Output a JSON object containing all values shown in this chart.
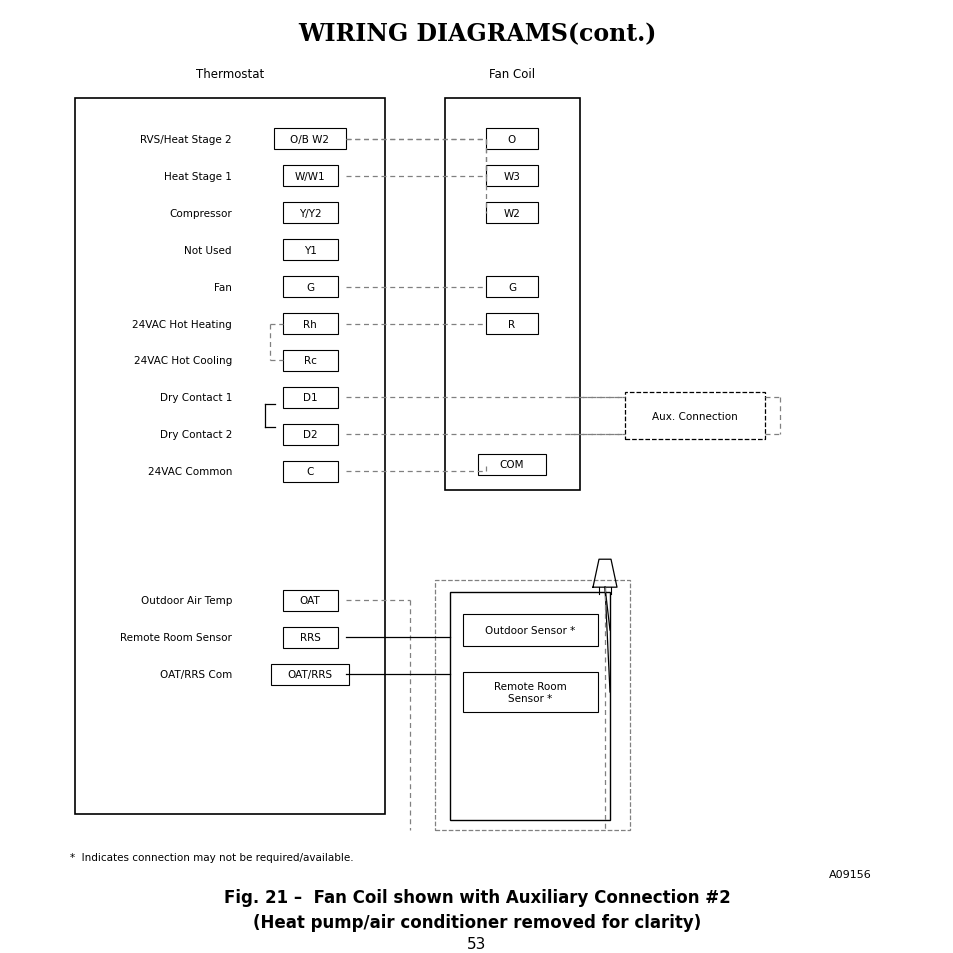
{
  "title": "WIRING DIAGRAMS(cont.)",
  "fig_caption_line1": "Fig. 21 –  Fan Coil shown with Auxiliary Connection #2",
  "fig_caption_line2": "(Heat pump/air conditioner removed for clarity)",
  "footnote": "*  Indicates connection may not be required/available.",
  "model_number": "A09156",
  "page_number": "53",
  "thermostat_label": "Thermostat",
  "fancoil_label": "Fan Coil",
  "thermo_rows": [
    {
      "label": "RVS/Heat Stage 2",
      "terminal": "O/B W2"
    },
    {
      "label": "Heat Stage 1",
      "terminal": "W/W1"
    },
    {
      "label": "Compressor",
      "terminal": "Y/Y2"
    },
    {
      "label": "Not Used",
      "terminal": "Y1"
    },
    {
      "label": "Fan",
      "terminal": "G"
    },
    {
      "label": "24VAC Hot Heating",
      "terminal": "Rh"
    },
    {
      "label": "24VAC Hot Cooling",
      "terminal": "Rc"
    },
    {
      "label": "Dry Contact 1",
      "terminal": "D1"
    },
    {
      "label": "Dry Contact 2",
      "terminal": "D2"
    },
    {
      "label": "24VAC Common",
      "terminal": "C"
    }
  ],
  "thermo_sensor_rows": [
    {
      "label": "Outdoor Air Temp",
      "terminal": "OAT"
    },
    {
      "label": "Remote Room Sensor",
      "terminal": "RRS"
    },
    {
      "label": "OAT/RRS Com",
      "terminal": "OAT/RRS"
    }
  ],
  "fancoil_rows": [
    {
      "terminal": "O"
    },
    {
      "terminal": "W3"
    },
    {
      "terminal": "W2"
    },
    {
      "terminal": "G"
    },
    {
      "terminal": "R"
    },
    {
      "terminal": "COM"
    }
  ],
  "connections": [
    {
      "from": "O/B W2",
      "to": "W3"
    },
    {
      "from": "W/W1",
      "to": "W2"
    },
    {
      "from": "G",
      "to": "G"
    },
    {
      "from": "Rh",
      "to": "R"
    },
    {
      "from": "D1",
      "to": "aux"
    },
    {
      "from": "D2",
      "to": "aux"
    },
    {
      "from": "C",
      "to": "COM"
    }
  ],
  "bg_color": "#ffffff",
  "line_color": "#000000",
  "dash_color": "#808080"
}
